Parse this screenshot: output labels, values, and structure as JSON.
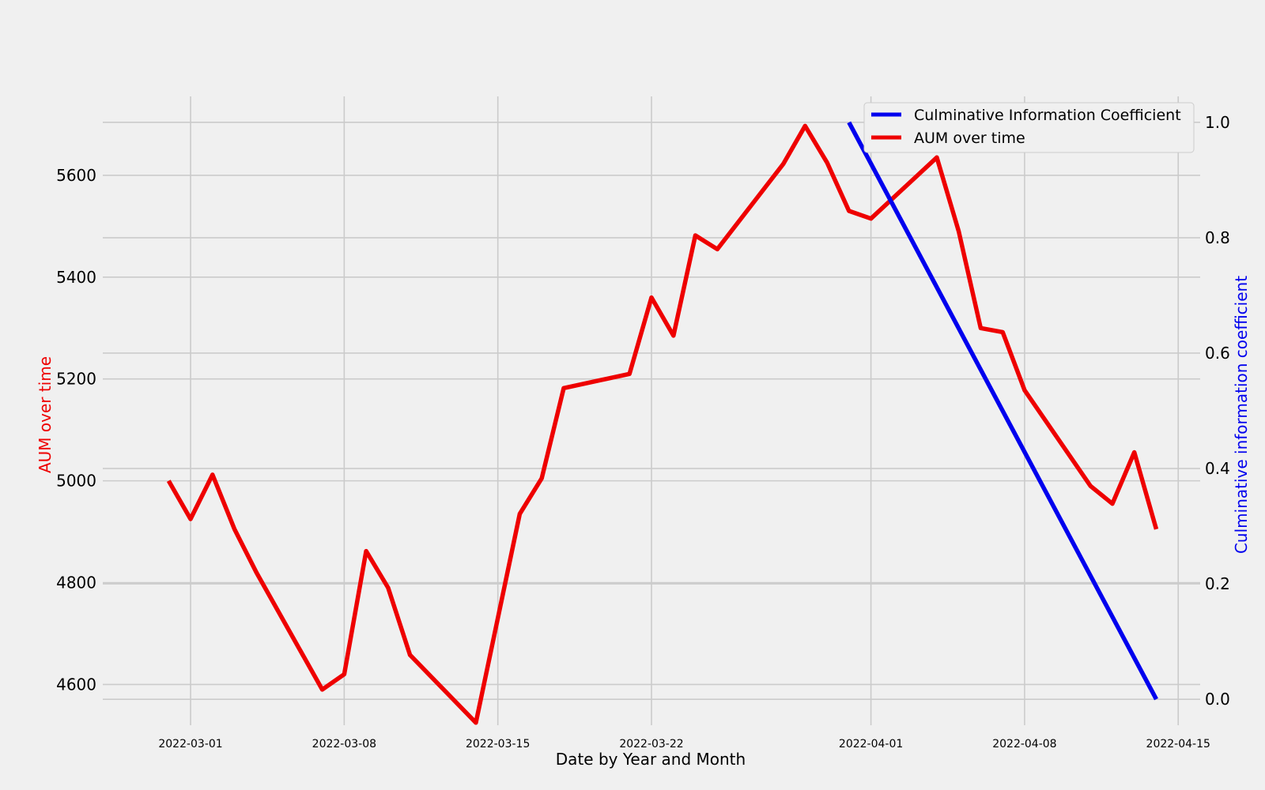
{
  "chart_data": {
    "type": "line",
    "xlabel": "Date by Year and Month",
    "ylabel_left": "AUM over time",
    "ylabel_right": "Culminative information coefficient",
    "x_ticks": [
      "2022-03-01",
      "2022-03-08",
      "2022-03-15",
      "2022-03-22",
      "2022-04-01",
      "2022-04-08",
      "2022-04-15"
    ],
    "xlim": [
      "2022-02-25",
      "2022-04-16"
    ],
    "y_left_ticks": [
      4600,
      4800,
      5000,
      5200,
      5400,
      5600
    ],
    "y_left_lim": [
      4520,
      5755
    ],
    "y_right_ticks": [
      "0.0",
      "0.2",
      "0.4",
      "0.6",
      "0.8",
      "1.0"
    ],
    "y_right_lim": [
      -0.045,
      1.045
    ],
    "grid": true,
    "legend_position": "top-right",
    "colors": {
      "aum": "#ee0000",
      "ic": "#0000ee",
      "background": "#f0f0f0",
      "grid": "#cbcbcb"
    },
    "series": [
      {
        "name": "Culminative Information Coefficient",
        "axis": "right",
        "color": "#0000ee",
        "points": [
          {
            "x": "2022-03-31",
            "y": 1.0
          },
          {
            "x": "2022-04-14",
            "y": 0.0
          }
        ]
      },
      {
        "name": "AUM over time",
        "axis": "left",
        "color": "#ee0000",
        "points": [
          {
            "x": "2022-02-28",
            "y": 5000
          },
          {
            "x": "2022-03-01",
            "y": 4925
          },
          {
            "x": "2022-03-02",
            "y": 5012
          },
          {
            "x": "2022-03-03",
            "y": 4905
          },
          {
            "x": "2022-03-04",
            "y": 4820
          },
          {
            "x": "2022-03-07",
            "y": 4590
          },
          {
            "x": "2022-03-08",
            "y": 4620
          },
          {
            "x": "2022-03-09",
            "y": 4862
          },
          {
            "x": "2022-03-10",
            "y": 4790
          },
          {
            "x": "2022-03-11",
            "y": 4658
          },
          {
            "x": "2022-03-14",
            "y": 4525
          },
          {
            "x": "2022-03-16",
            "y": 4935
          },
          {
            "x": "2022-03-17",
            "y": 5005
          },
          {
            "x": "2022-03-18",
            "y": 5182
          },
          {
            "x": "2022-03-21",
            "y": 5210
          },
          {
            "x": "2022-03-22",
            "y": 5360
          },
          {
            "x": "2022-03-23",
            "y": 5285
          },
          {
            "x": "2022-03-24",
            "y": 5482
          },
          {
            "x": "2022-03-25",
            "y": 5455
          },
          {
            "x": "2022-03-28",
            "y": 5622
          },
          {
            "x": "2022-03-29",
            "y": 5697
          },
          {
            "x": "2022-03-30",
            "y": 5625
          },
          {
            "x": "2022-03-31",
            "y": 5530
          },
          {
            "x": "2022-04-01",
            "y": 5515
          },
          {
            "x": "2022-04-04",
            "y": 5635
          },
          {
            "x": "2022-04-05",
            "y": 5490
          },
          {
            "x": "2022-04-06",
            "y": 5300
          },
          {
            "x": "2022-04-07",
            "y": 5292
          },
          {
            "x": "2022-04-08",
            "y": 5178
          },
          {
            "x": "2022-04-11",
            "y": 4990
          },
          {
            "x": "2022-04-12",
            "y": 4955
          },
          {
            "x": "2022-04-13",
            "y": 5056
          },
          {
            "x": "2022-04-14",
            "y": 4905
          }
        ]
      }
    ]
  }
}
